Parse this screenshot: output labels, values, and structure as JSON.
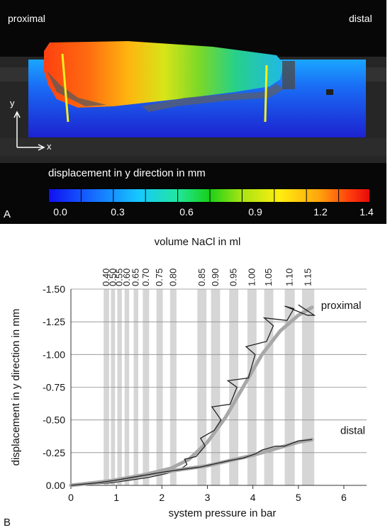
{
  "panel_a": {
    "letter": "A",
    "label_left": "proximal",
    "label_right": "distal",
    "axis_y": "y",
    "axis_x": "x",
    "colorbar": {
      "title": "displacement in y direction in mm",
      "ticks": [
        "0.0",
        "0.3",
        "0.6",
        "0.9",
        "1.2",
        "1.4"
      ],
      "range": [
        0.0,
        1.4
      ],
      "colors": [
        "#1010f0",
        "#16c8ff",
        "#18d018",
        "#ffee10",
        "#ff3c0c",
        "#e60a0a"
      ]
    }
  },
  "panel_b": {
    "letter": "B",
    "line_labels": [
      "proximal",
      "distal"
    ]
  },
  "chart_data": {
    "type": "line",
    "xlabel": "system pressure in bar",
    "ylabel": "displacement in y direction in mm",
    "top_axis_label": "volume NaCl in ml",
    "xlim": [
      0,
      6.5
    ],
    "ylim": [
      0.0,
      -1.5
    ],
    "x_ticks": [
      "0",
      "1",
      "2",
      "3",
      "4",
      "5",
      "6"
    ],
    "y_ticks": [
      "-1.50",
      "-1.25",
      "-1.00",
      "-0.75",
      "-0.50",
      "-0.25",
      "0.00"
    ],
    "y_tick_values": [
      -1.5,
      -1.25,
      -1.0,
      -0.75,
      -0.5,
      -0.25,
      0.0
    ],
    "grid": "horizontal",
    "volume_bands": [
      {
        "volume": "0.40",
        "x_start": 0.72,
        "x_end": 0.84
      },
      {
        "volume": "0.50",
        "x_start": 0.88,
        "x_end": 0.97
      },
      {
        "volume": "0.55",
        "x_start": 1.02,
        "x_end": 1.12
      },
      {
        "volume": "0.60",
        "x_start": 1.18,
        "x_end": 1.28
      },
      {
        "volume": "0.65",
        "x_start": 1.38,
        "x_end": 1.48
      },
      {
        "volume": "0.70",
        "x_start": 1.58,
        "x_end": 1.72
      },
      {
        "volume": "0.75",
        "x_start": 1.88,
        "x_end": 2.02
      },
      {
        "volume": "0.80",
        "x_start": 2.18,
        "x_end": 2.32
      },
      {
        "volume": "0.85",
        "x_start": 2.78,
        "x_end": 2.98
      },
      {
        "volume": "0.90",
        "x_start": 3.08,
        "x_end": 3.28
      },
      {
        "volume": "0.95",
        "x_start": 3.48,
        "x_end": 3.68
      },
      {
        "volume": "1.00",
        "x_start": 3.88,
        "x_end": 4.08
      },
      {
        "volume": "1.05",
        "x_start": 4.25,
        "x_end": 4.45
      },
      {
        "volume": "1.10",
        "x_start": 4.7,
        "x_end": 4.92
      },
      {
        "volume": "1.15",
        "x_start": 5.08,
        "x_end": 5.35
      }
    ],
    "series": [
      {
        "name": "proximal",
        "x": [
          0.0,
          0.5,
          0.9,
          1.3,
          1.7,
          2.1,
          2.4,
          2.55,
          2.5,
          2.75,
          2.95,
          2.85,
          3.15,
          3.3,
          3.1,
          3.5,
          3.65,
          3.45,
          3.9,
          4.05,
          3.85,
          4.3,
          4.45,
          4.25,
          4.75,
          4.9,
          4.7,
          5.2,
          5.35,
          5.0
        ],
        "y": [
          0.0,
          -0.01,
          -0.02,
          -0.04,
          -0.06,
          -0.09,
          -0.12,
          -0.16,
          -0.2,
          -0.22,
          -0.3,
          -0.36,
          -0.42,
          -0.5,
          -0.6,
          -0.62,
          -0.75,
          -0.8,
          -0.82,
          -1.0,
          -1.06,
          -1.1,
          -1.22,
          -1.28,
          -1.26,
          -1.35,
          -1.37,
          -1.3,
          -1.3,
          -1.38
        ],
        "smooth_x": [
          0.0,
          0.8,
          1.6,
          2.2,
          2.6,
          3.0,
          3.4,
          3.8,
          4.2,
          4.6,
          5.0,
          5.3
        ],
        "smooth_y": [
          0.0,
          -0.03,
          -0.08,
          -0.13,
          -0.2,
          -0.33,
          -0.52,
          -0.76,
          -1.0,
          -1.18,
          -1.3,
          -1.36
        ]
      },
      {
        "name": "distal",
        "x": [
          0.0,
          0.6,
          1.0,
          1.5,
          2.0,
          2.4,
          2.85,
          3.1,
          3.5,
          3.8,
          4.05,
          4.2,
          4.5,
          4.7,
          5.0,
          5.3
        ],
        "y": [
          0.0,
          -0.02,
          -0.04,
          -0.07,
          -0.1,
          -0.12,
          -0.14,
          -0.16,
          -0.19,
          -0.21,
          -0.24,
          -0.27,
          -0.3,
          -0.3,
          -0.34,
          -0.35
        ],
        "smooth_x": [
          0.0,
          1.0,
          2.0,
          3.0,
          4.0,
          5.0,
          5.3
        ],
        "smooth_y": [
          0.0,
          -0.04,
          -0.1,
          -0.15,
          -0.23,
          -0.33,
          -0.35
        ]
      }
    ]
  }
}
